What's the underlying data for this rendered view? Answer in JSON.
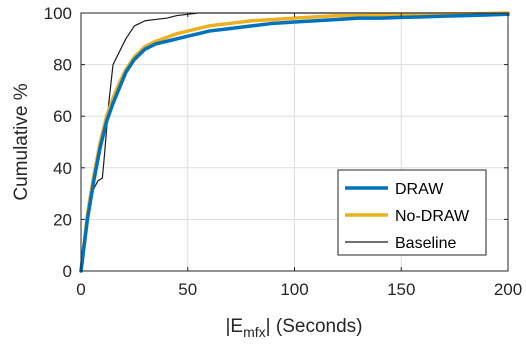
{
  "chart_data": {
    "type": "line",
    "xlabel": "|E",
    "xlabel_sub": "mfx",
    "xlabel_rest": "| (Seconds)",
    "ylabel": "Cumulative %",
    "xlim": [
      0,
      200
    ],
    "ylim": [
      0,
      100
    ],
    "xticks": [
      0,
      50,
      100,
      150,
      200
    ],
    "yticks": [
      0,
      20,
      40,
      60,
      80,
      100
    ],
    "xtick_labels": [
      "0",
      "50",
      "100",
      "150",
      "200"
    ],
    "ytick_labels": [
      "0",
      "20",
      "40",
      "60",
      "80",
      "100"
    ],
    "grid": true,
    "legend_position": "lower-right",
    "series": [
      {
        "name": "DRAW",
        "color": "#0072BD",
        "x": [
          0,
          3,
          6,
          9,
          12,
          15,
          18,
          21,
          25,
          30,
          35,
          40,
          45,
          50,
          55,
          60,
          70,
          80,
          90,
          100,
          110,
          120,
          130,
          140,
          150,
          160,
          170,
          180,
          190,
          200
        ],
        "y": [
          0,
          20,
          35,
          48,
          58,
          65,
          71,
          77,
          82,
          86,
          88,
          89,
          90,
          91,
          92,
          93,
          94,
          95,
          96,
          96.5,
          97,
          97.5,
          98,
          98,
          98.3,
          98.5,
          98.8,
          99,
          99.2,
          99.5
        ]
      },
      {
        "name": "No-DRAW",
        "color": "#EDB120",
        "x": [
          0,
          3,
          6,
          9,
          12,
          15,
          18,
          21,
          25,
          30,
          35,
          40,
          45,
          50,
          55,
          60,
          70,
          80,
          90,
          100,
          110,
          120,
          130,
          140,
          150,
          160,
          170,
          180,
          190,
          200
        ],
        "y": [
          0,
          22,
          37,
          50,
          60,
          67,
          73,
          78,
          83,
          87,
          89,
          90.5,
          92,
          93,
          94,
          95,
          96,
          97,
          97.5,
          98,
          98.5,
          99,
          99,
          99.2,
          99.4,
          99.5,
          99.6,
          99.7,
          99.8,
          100
        ]
      },
      {
        "name": "Baseline",
        "color": "#1a1a1a",
        "x": [
          0,
          2,
          4,
          6,
          8,
          10,
          11,
          13,
          15,
          18,
          21,
          25,
          30,
          35,
          40,
          45,
          50,
          55,
          60,
          80,
          100,
          150,
          200
        ],
        "y": [
          5,
          15,
          25,
          32,
          35,
          36,
          45,
          65,
          80,
          85,
          90,
          95,
          97,
          97.5,
          98,
          99,
          99.5,
          100,
          100,
          100,
          100,
          100,
          100
        ]
      }
    ]
  }
}
